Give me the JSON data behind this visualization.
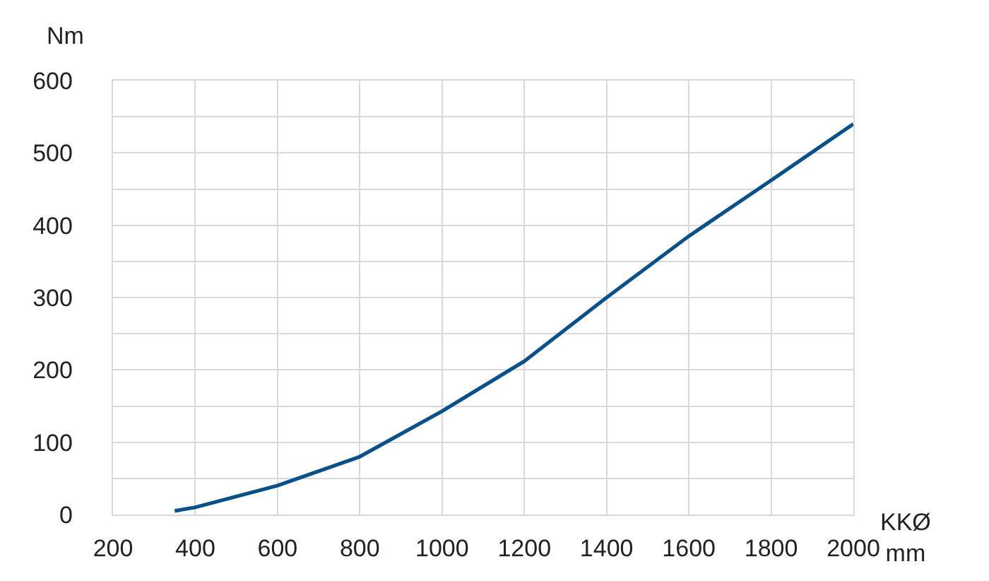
{
  "chart_data": {
    "type": "line",
    "xlabel": "KKØ\nmm",
    "ylabel": "Nm",
    "x": [
      350,
      400,
      600,
      800,
      1000,
      1200,
      1400,
      1600,
      1800,
      2000
    ],
    "values": [
      5,
      10,
      40,
      80,
      143,
      212,
      300,
      385,
      462,
      540
    ],
    "color": "#0a5089",
    "line_style": "solid",
    "xlim": [
      200,
      2000
    ],
    "xticks": [
      200,
      400,
      600,
      800,
      1000,
      1200,
      1400,
      1600,
      1800,
      2000
    ],
    "ylim": [
      0,
      600
    ],
    "yticks": [
      0,
      {
        "value": 50,
        "label": null
      },
      100,
      {
        "value": 150,
        "label": null
      },
      200,
      {
        "value": 250,
        "label": null
      },
      300,
      {
        "value": 350,
        "label": null
      },
      400,
      {
        "value": 450,
        "label": null
      },
      500,
      {
        "value": 550,
        "label": null
      },
      600
    ],
    "grid": true
  }
}
